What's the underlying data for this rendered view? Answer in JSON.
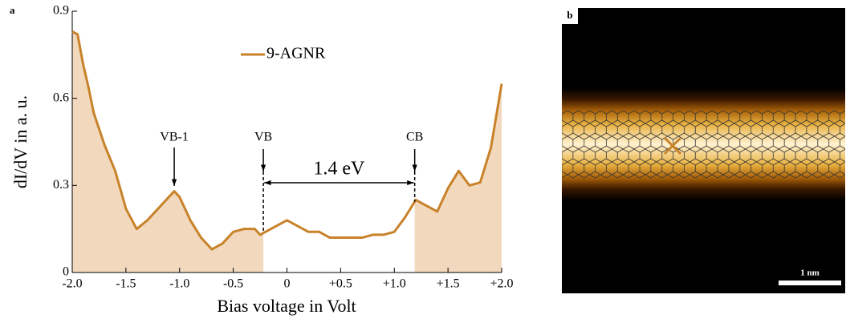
{
  "chart_data": {
    "type": "line",
    "panel_label": "a",
    "x_label": "Bias voltage in Volt",
    "y_label": "dI/dV in a. u.",
    "x": [
      -2.0,
      -1.95,
      -1.9,
      -1.85,
      -1.8,
      -1.7,
      -1.6,
      -1.5,
      -1.4,
      -1.3,
      -1.2,
      -1.1,
      -1.05,
      -1.0,
      -0.9,
      -0.8,
      -0.7,
      -0.6,
      -0.5,
      -0.4,
      -0.3,
      -0.25,
      -0.2,
      -0.1,
      0.0,
      0.1,
      0.2,
      0.3,
      0.4,
      0.5,
      0.6,
      0.7,
      0.8,
      0.9,
      1.0,
      1.1,
      1.2,
      1.3,
      1.4,
      1.5,
      1.6,
      1.7,
      1.8,
      1.9,
      2.0
    ],
    "series": [
      {
        "name": "9-AGNR",
        "color": "#c8822a",
        "values": [
          0.83,
          0.82,
          0.72,
          0.64,
          0.55,
          0.44,
          0.35,
          0.22,
          0.15,
          0.18,
          0.22,
          0.26,
          0.28,
          0.26,
          0.18,
          0.12,
          0.08,
          0.1,
          0.14,
          0.15,
          0.15,
          0.13,
          0.14,
          0.16,
          0.18,
          0.16,
          0.14,
          0.14,
          0.12,
          0.12,
          0.12,
          0.12,
          0.13,
          0.13,
          0.14,
          0.19,
          0.25,
          0.23,
          0.21,
          0.29,
          0.35,
          0.3,
          0.31,
          0.43,
          0.65
        ]
      }
    ],
    "shade_color": "#f2d9bd",
    "shaded_x_ranges": [
      [
        -2.0,
        -0.22
      ],
      [
        1.19,
        2.0
      ]
    ],
    "annotations": [
      {
        "text": "VB-1",
        "x": -1.05
      },
      {
        "text": "VB",
        "x": -0.22
      },
      {
        "text": "CB",
        "x": 1.19
      }
    ],
    "gap_label": "1.4 eV",
    "xlim": [
      -2.0,
      2.0
    ],
    "xticks": [
      {
        "value": -2.0,
        "label": "-2.0"
      },
      {
        "value": -1.5,
        "label": "-1.5"
      },
      {
        "value": -1.0,
        "label": "-1.0"
      },
      {
        "value": -0.5,
        "label": "-0.5"
      },
      0,
      {
        "value": 0.5,
        "label": "+0.5"
      },
      {
        "value": 1.0,
        "label": "+1.0"
      },
      {
        "value": 1.5,
        "label": "+1.5"
      },
      {
        "value": 2.0,
        "label": "+2.0"
      }
    ],
    "ylim": [
      0,
      0.9
    ],
    "yticks": [
      0,
      0.3,
      0.6,
      0.9
    ]
  },
  "image_panel": {
    "label": "b",
    "scale_bar": "1 nm"
  }
}
